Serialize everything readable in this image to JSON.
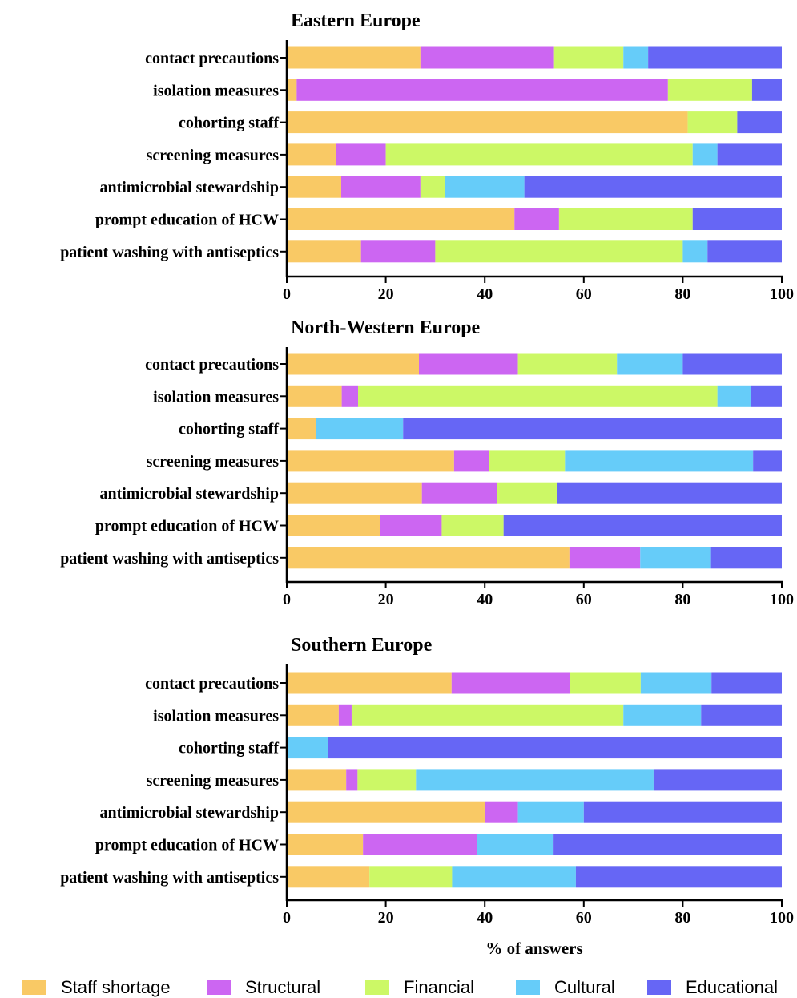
{
  "chart_data": {
    "type": "bar",
    "orientation": "horizontal",
    "stacked": true,
    "categories": [
      "contact precautions",
      "isolation measures",
      "cohorting staff",
      "screening measures",
      "antimicrobial stewardship",
      "prompt education of HCW",
      "patient washing with antiseptics"
    ],
    "xlim": [
      0,
      100
    ],
    "xticks": [
      0,
      20,
      40,
      60,
      80,
      100
    ],
    "xlabel": "% of answers",
    "legend_position": "bottom",
    "series_names": [
      "Staff shortage",
      "Structural",
      "Financial",
      "Cultural",
      "Educational"
    ],
    "colors": {
      "Staff shortage": "#F9C965",
      "Structural": "#CC66F2",
      "Financial": "#CCF866",
      "Cultural": "#66CCF9",
      "Educational": "#6666F5"
    },
    "panels": [
      {
        "title": "Eastern Europe",
        "series": [
          {
            "name": "Staff shortage",
            "values": [
              27,
              2,
              81,
              10,
              11,
              46,
              15
            ]
          },
          {
            "name": "Structural",
            "values": [
              27,
              75,
              0,
              10,
              16,
              9,
              15
            ]
          },
          {
            "name": "Financial",
            "values": [
              14,
              17,
              10,
              62,
              5,
              27,
              50
            ]
          },
          {
            "name": "Cultural",
            "values": [
              5,
              0,
              0,
              5,
              16,
              0,
              5
            ]
          },
          {
            "name": "Educational",
            "values": [
              27,
              6,
              9,
              13,
              52,
              18,
              15
            ]
          }
        ]
      },
      {
        "title": "North-Western Europe",
        "series": [
          {
            "name": "Staff shortage",
            "values": [
              26.7,
              11.1,
              5.9,
              33.8,
              27.3,
              18.8,
              57.1
            ]
          },
          {
            "name": "Structural",
            "values": [
              20,
              3.3,
              0,
              7,
              15.2,
              12.5,
              14.3
            ]
          },
          {
            "name": "Financial",
            "values": [
              20,
              72.6,
              0,
              15.4,
              12.1,
              12.5,
              0
            ]
          },
          {
            "name": "Cultural",
            "values": [
              13.3,
              6.7,
              17.6,
              38,
              0,
              0,
              14.3
            ]
          },
          {
            "name": "Educational",
            "values": [
              20,
              6.3,
              76.5,
              5.8,
              45.4,
              56.2,
              14.3
            ]
          }
        ]
      },
      {
        "title": "Southern Europe",
        "series": [
          {
            "name": "Staff shortage",
            "values": [
              33.3,
              10.5,
              0,
              12,
              40,
              15.4,
              16.7
            ]
          },
          {
            "name": "Structural",
            "values": [
              23.9,
              2.6,
              0,
              2.3,
              6.7,
              23.1,
              0
            ]
          },
          {
            "name": "Financial",
            "values": [
              14.3,
              54.9,
              0,
              11.8,
              0,
              0,
              16.7
            ]
          },
          {
            "name": "Cultural",
            "values": [
              14.3,
              15.7,
              8.3,
              48,
              13.3,
              15.4,
              25
            ]
          },
          {
            "name": "Educational",
            "values": [
              14.2,
              16.3,
              91.7,
              25.9,
              40,
              46.1,
              41.6
            ]
          }
        ]
      }
    ]
  }
}
